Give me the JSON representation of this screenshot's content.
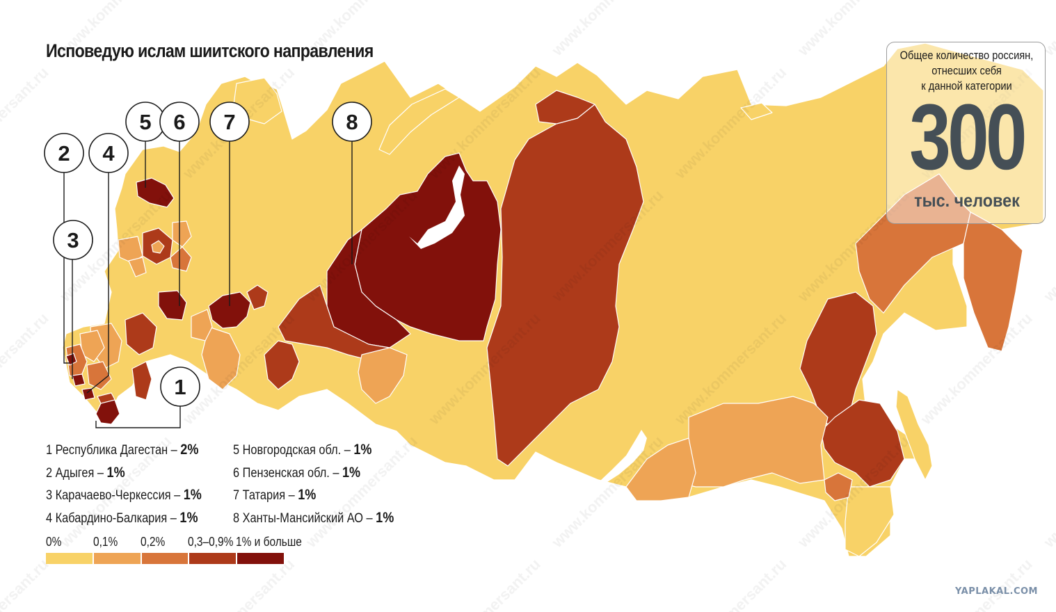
{
  "title": "Исповедую ислам шиитского направления",
  "colors": {
    "level_0": "#f8d267",
    "level_01": "#eea455",
    "level_02": "#d8753a",
    "level_03_09": "#ad3a1a",
    "level_1plus": "#82110b",
    "water": "#ffffff"
  },
  "callouts": [
    "1",
    "2",
    "3",
    "4",
    "5",
    "6",
    "7",
    "8"
  ],
  "regions_list": {
    "left": [
      {
        "label": "1 Республика Дагестан – ",
        "value": "2%"
      },
      {
        "label": "2 Адыгея – ",
        "value": "1%"
      },
      {
        "label": "3 Карачаево-Черкессия – ",
        "value": "1%"
      },
      {
        "label": "4 Кабардино-Балкария – ",
        "value": "1%"
      }
    ],
    "right": [
      {
        "label": "5 Новгородская обл. – ",
        "value": "1%"
      },
      {
        "label": "6 Пензенская обл. – ",
        "value": "1%"
      },
      {
        "label": "7 Татария – ",
        "value": "1%"
      },
      {
        "label": "8 Ханты-Мансийский АО – ",
        "value": "1%"
      }
    ]
  },
  "scale": {
    "labels": [
      "0%",
      "0,1%",
      "0,2%",
      "0,3–0,9%",
      "1% и больше"
    ]
  },
  "total": {
    "caption": [
      "Общее количество россиян,",
      "отнесших себя",
      "к данной категории"
    ],
    "number": "300",
    "unit": "тыс. человек"
  },
  "watermark": "www.kommersant.ru",
  "source_label": "YAPLAKAL.COM"
}
